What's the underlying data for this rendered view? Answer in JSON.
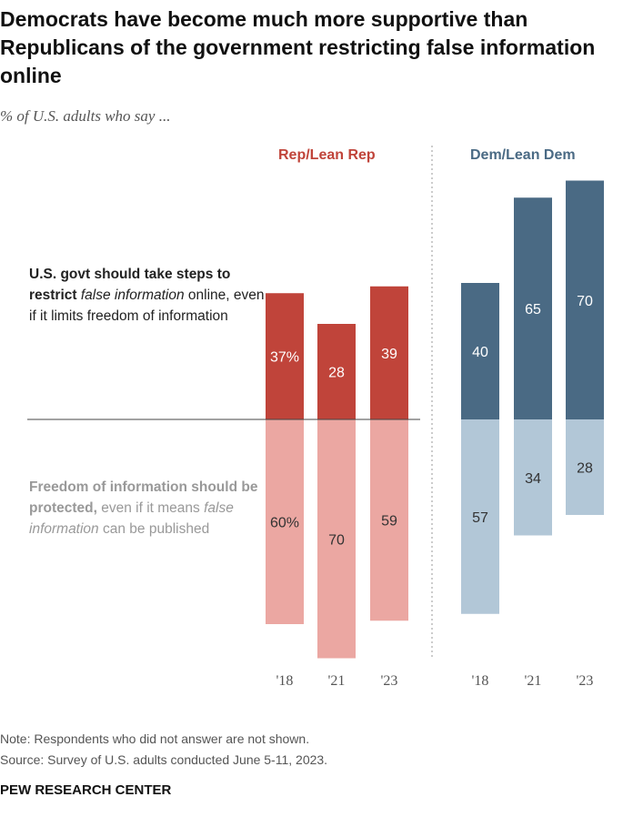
{
  "chart_data": {
    "type": "bar",
    "title": "Democrats have become much more supportive than Republicans of the government restricting false information online",
    "subtitle": "% of U.S. adults who say ...",
    "categories": [
      "'18",
      "'21",
      "'23"
    ],
    "panels": [
      {
        "name": "Rep/Lean Rep",
        "color_top": "#c0443a",
        "color_bottom": "#eba7a2",
        "restrict": [
          37,
          28,
          39
        ],
        "protect": [
          60,
          70,
          59
        ],
        "restrict_labels": [
          "37%",
          "28",
          "39"
        ],
        "protect_labels": [
          "60%",
          "70",
          "59"
        ]
      },
      {
        "name": "Dem/Lean Dem",
        "color_top": "#4a6a84",
        "color_bottom": "#b2c7d7",
        "restrict": [
          40,
          65,
          70
        ],
        "protect": [
          57,
          34,
          28
        ],
        "restrict_labels": [
          "40",
          "65",
          "70"
        ],
        "protect_labels": [
          "57",
          "34",
          "28"
        ]
      }
    ],
    "series_labels": {
      "restrict": {
        "bold": "U.S. govt should take steps to restrict ",
        "italic": "false information",
        "rest": " online, even if it limits freedom of information"
      },
      "protect": {
        "bold": "Freedom of information should be protected,",
        "rest1": " even if it means ",
        "italic": "false information",
        "rest2": " can be published"
      }
    }
  },
  "notes": {
    "note": "Note: Respondents who did not answer are not shown.",
    "source": "Source: Survey of U.S. adults conducted June 5-11, 2023.",
    "brand": "PEW RESEARCH CENTER"
  }
}
